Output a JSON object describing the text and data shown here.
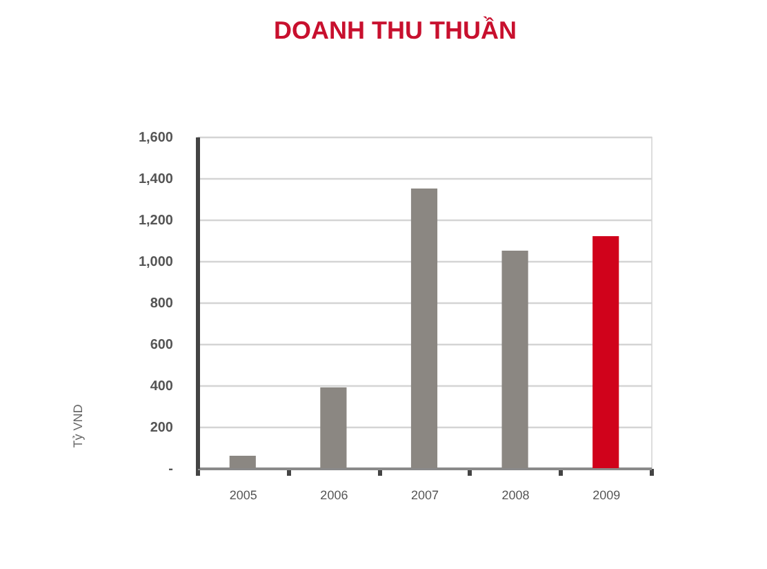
{
  "chart_data": {
    "type": "bar",
    "title": "DOANH THU THUẦN",
    "ylabel": "Tỷ VND",
    "categories": [
      "2005",
      "2006",
      "2007",
      "2008",
      "2009"
    ],
    "values": [
      60,
      390,
      1350,
      1050,
      1120
    ],
    "colors": [
      "#8b8782",
      "#8b8782",
      "#8b8782",
      "#8b8782",
      "#d0021b"
    ],
    "ylim": [
      0,
      1600
    ],
    "yticks": [
      {
        "value": 0,
        "label": "-"
      },
      200,
      400,
      600,
      800,
      {
        "value": 1000,
        "label": "1,000"
      },
      {
        "value": 1200,
        "label": "1,200"
      },
      {
        "value": 1400,
        "label": "1,400"
      },
      {
        "value": 1600,
        "label": "1,600"
      }
    ],
    "grid": "y"
  }
}
